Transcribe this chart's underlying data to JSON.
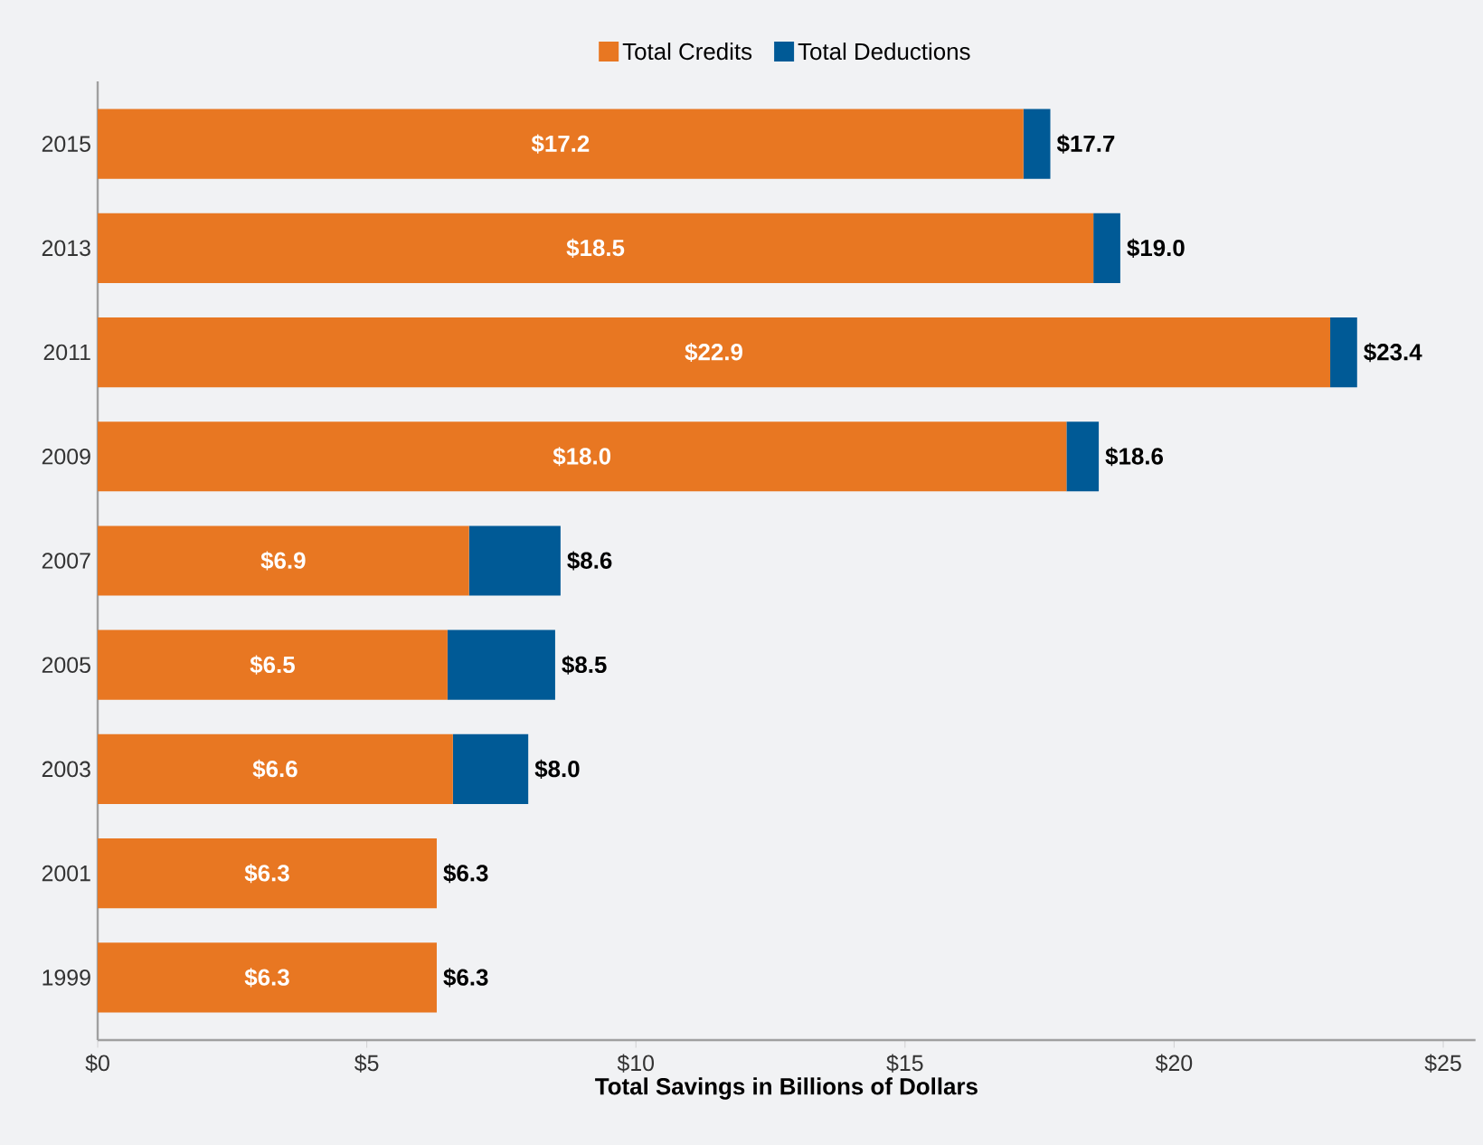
{
  "chart_data": {
    "type": "bar",
    "orientation": "horizontal",
    "stacked": true,
    "categories": [
      "2015",
      "2013",
      "2011",
      "2009",
      "2007",
      "2005",
      "2003",
      "2001",
      "1999"
    ],
    "series": [
      {
        "name": "Total Credits",
        "color": "#e87722",
        "values": [
          17.2,
          18.5,
          22.9,
          18.0,
          6.9,
          6.5,
          6.6,
          6.3,
          6.3
        ],
        "value_labels": [
          "$17.2",
          "$18.5",
          "$22.9",
          "$18.0",
          "$6.9",
          "$6.5",
          "$6.6",
          "$6.3",
          "$6.3"
        ]
      },
      {
        "name": "Total Deductions",
        "color": "#005a96",
        "values": [
          0.5,
          0.5,
          0.5,
          0.6,
          1.7,
          2.0,
          1.4,
          0,
          0
        ]
      }
    ],
    "totals": [
      "$17.7",
      "$19.0",
      "$23.4",
      "$18.6",
      "$8.6",
      "$8.5",
      "$8.0",
      "$6.3",
      "$6.3"
    ],
    "xlabel": "Total Savings in Billions of Dollars",
    "xlim": [
      0,
      25.6
    ],
    "xticks": [
      {
        "value": 0,
        "label": "$0"
      },
      {
        "value": 5,
        "label": "$5"
      },
      {
        "value": 10,
        "label": "$10"
      },
      {
        "value": 15,
        "label": "$15"
      },
      {
        "value": 20,
        "label": "$20"
      },
      {
        "value": 25,
        "label": "$25"
      }
    ],
    "grid": false,
    "legend": "top"
  }
}
